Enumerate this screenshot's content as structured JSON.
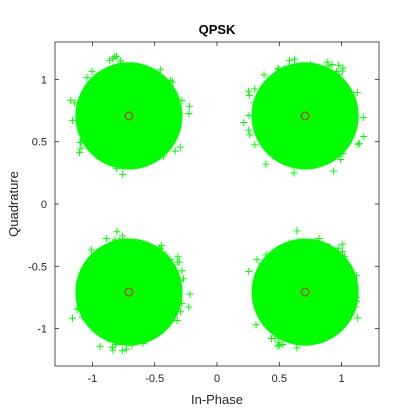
{
  "chart_data": {
    "type": "scatter",
    "title": "QPSK",
    "xlabel": "In-Phase",
    "ylabel": "Quadrature",
    "xlim": [
      -1.3,
      1.3
    ],
    "ylim": [
      -1.3,
      1.3
    ],
    "xticks": [
      -1,
      -0.5,
      0,
      0.5,
      1
    ],
    "yticks": [
      -1,
      -0.5,
      0,
      0.5,
      1
    ],
    "xtick_labels": [
      "-1",
      "-0.5",
      "0",
      "0.5",
      "1"
    ],
    "ytick_labels": [
      "-1",
      "-0.5",
      "0",
      "0.5",
      "1"
    ],
    "grid": false,
    "colors": {
      "received": "#00ff00",
      "ideal": "#d62728",
      "axes": "#262626"
    },
    "series": [
      {
        "marker": "plus",
        "centers": [
          [
            -0.707,
            0.707
          ],
          [
            0.707,
            0.707
          ],
          [
            -0.707,
            -0.707
          ],
          [
            0.707,
            -0.707
          ]
        ],
        "spread_radius": 0.5
      },
      {
        "marker": "circle",
        "x": [
          -0.707,
          0.707,
          -0.707,
          0.707
        ],
        "y": [
          0.707,
          0.707,
          -0.707,
          -0.707
        ]
      }
    ]
  }
}
